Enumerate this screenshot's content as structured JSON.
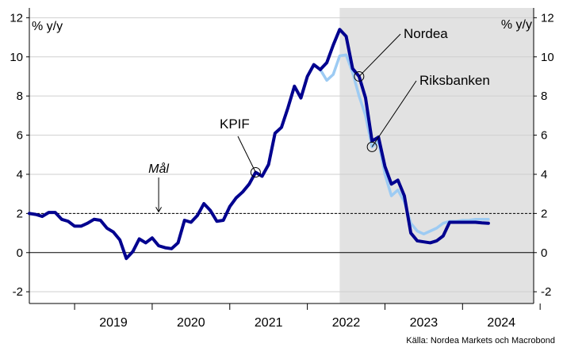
{
  "chart_data": {
    "type": "line",
    "ylabel_left": "% y/y",
    "ylabel_right": "% y/y",
    "ylim": [
      -2.6,
      12.5
    ],
    "yticks": [
      -2,
      0,
      2,
      4,
      6,
      8,
      10,
      12
    ],
    "xlim": [
      "2018-06",
      "2024-12"
    ],
    "year_labels": [
      "2019",
      "2020",
      "2021",
      "2022",
      "2023",
      "2024"
    ],
    "goal": {
      "value": 2,
      "label": "Mål"
    },
    "forecast_shading_start": "2022-06",
    "annotations": [
      {
        "label": "KPIF",
        "series": "kpif",
        "at": "2021-05"
      },
      {
        "label": "Nordea",
        "series": "nordea",
        "at": "2022-09"
      },
      {
        "label": "Riksbanken",
        "series": "riksbanken",
        "at": "2022-11"
      }
    ],
    "series": [
      {
        "id": "kpif",
        "color": "#00008F",
        "start": "2018-06",
        "values": [
          2.0,
          1.95,
          1.85,
          2.05,
          2.05,
          1.7,
          1.6,
          1.35,
          1.35,
          1.5,
          1.7,
          1.65,
          1.25,
          1.05,
          0.65,
          -0.3,
          0.05,
          0.7,
          0.5,
          0.75,
          0.35,
          0.25,
          0.2,
          0.5,
          1.65,
          1.55,
          1.9,
          2.5,
          2.15,
          1.6,
          1.65,
          2.35,
          2.8,
          3.1,
          3.5,
          4.1,
          3.9,
          4.5,
          6.1,
          6.4,
          7.4,
          8.5,
          7.9,
          9.0,
          9.6,
          9.35
        ]
      },
      {
        "id": "nordea",
        "color": "#00008F",
        "start": "2022-03",
        "values": [
          9.35,
          9.7,
          10.6,
          11.4,
          11.05,
          9.4,
          9.0,
          7.9,
          5.7,
          5.9,
          4.4,
          3.5,
          3.7,
          2.9,
          1.0,
          0.6,
          0.55,
          0.5,
          0.6,
          0.85,
          1.55,
          1.55,
          1.55,
          1.55,
          1.55,
          1.52,
          1.5
        ]
      },
      {
        "id": "riksbanken",
        "color": "#9DCBF3",
        "start": "2022-03",
        "values": [
          9.35,
          8.8,
          9.1,
          10.05,
          10.1,
          9.2,
          8.0,
          7.0,
          5.4,
          5.7,
          4.0,
          2.9,
          3.2,
          2.6,
          1.5,
          1.1,
          0.95,
          1.1,
          1.25,
          1.5,
          1.6,
          1.6,
          1.65,
          1.65,
          1.7,
          1.7,
          1.7
        ]
      }
    ],
    "source": "Källa: Nordea Markets och Macrobond"
  }
}
